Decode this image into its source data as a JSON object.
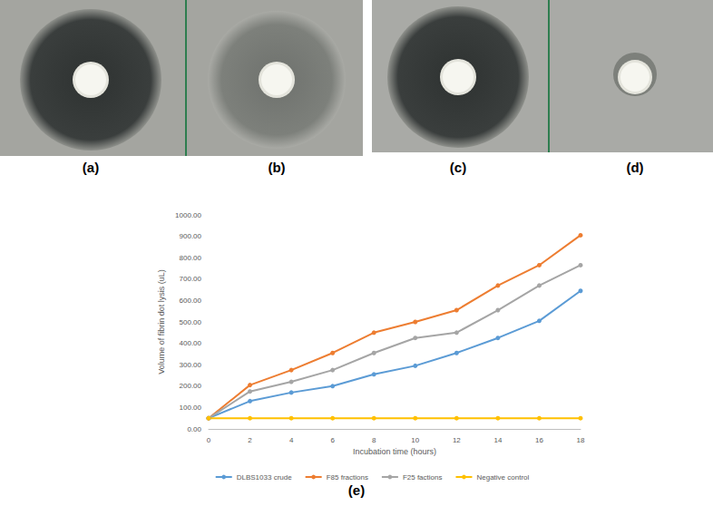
{
  "panels": [
    {
      "label": "(a)"
    },
    {
      "label": "(b)"
    },
    {
      "label": "(c)"
    },
    {
      "label": "(d)"
    }
  ],
  "chart_label": "(e)",
  "chart_data": {
    "type": "line",
    "x_label": "Incubation time (hours)",
    "y_label": "Volume of fibrin dot lysis (uL)",
    "x": [
      0,
      2,
      4,
      6,
      8,
      10,
      12,
      14,
      16,
      18
    ],
    "xlim": [
      0,
      18
    ],
    "xticks": [
      0,
      2,
      4,
      6,
      8,
      10,
      12,
      14,
      16,
      18
    ],
    "ylim": [
      0,
      1000
    ],
    "yticks": [
      {
        "value": 0,
        "label": "0.00"
      },
      {
        "value": 100,
        "label": "100.00"
      },
      {
        "value": 200,
        "label": "200.00"
      },
      {
        "value": 300,
        "label": "300.00"
      },
      {
        "value": 400,
        "label": "400.00"
      },
      {
        "value": 500,
        "label": "500.00"
      },
      {
        "value": 600,
        "label": "600.00"
      },
      {
        "value": 700,
        "label": "700.00"
      },
      {
        "value": 800,
        "label": "800.00"
      },
      {
        "value": 900,
        "label": "900.00"
      },
      {
        "value": 1000,
        "label": "1000.00"
      }
    ],
    "grid": false,
    "legend": "bottom",
    "marker": "circle",
    "series": [
      {
        "name": "DLBS1033 crude",
        "color": "#5b9bd5",
        "values": [
          50,
          130,
          170,
          200,
          255,
          295,
          355,
          425,
          505,
          645
        ]
      },
      {
        "name": "F85 fractions",
        "color": "#ed7d31",
        "values": [
          50,
          205,
          275,
          355,
          450,
          500,
          555,
          670,
          765,
          905
        ]
      },
      {
        "name": "F25 factions",
        "color": "#a5a5a5",
        "values": [
          50,
          175,
          220,
          275,
          355,
          425,
          450,
          555,
          670,
          765
        ]
      },
      {
        "name": "Negative control",
        "color": "#ffc000",
        "values": [
          50,
          50,
          50,
          50,
          50,
          50,
          50,
          50,
          50,
          50
        ]
      }
    ]
  }
}
